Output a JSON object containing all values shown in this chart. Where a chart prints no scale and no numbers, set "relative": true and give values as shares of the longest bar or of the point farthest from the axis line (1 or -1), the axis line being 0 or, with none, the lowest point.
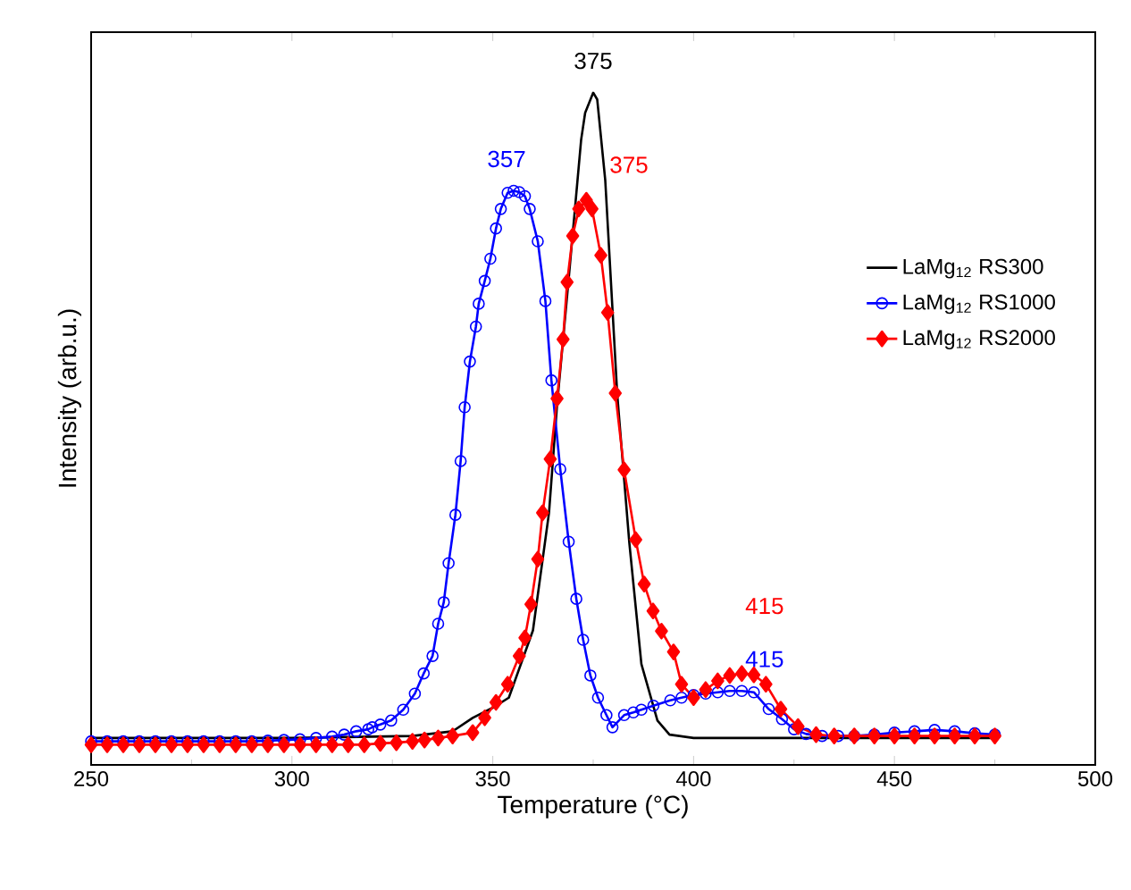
{
  "chart_data": {
    "type": "line",
    "xlabel": "Temperature (°C)",
    "ylabel": "Intensity (arb.u.)",
    "relative": true,
    "xlim": [
      250,
      500
    ],
    "xticks": [
      250,
      300,
      350,
      400,
      450,
      500
    ],
    "legend": "right",
    "line_style": "solid",
    "grid": false,
    "series": [
      {
        "name": "LaMg$_{12}$ RS300",
        "color": "#000000",
        "marker": "none",
        "x": [
          250,
          300,
          330,
          340,
          345,
          350,
          354,
          360,
          364,
          366,
          369,
          372,
          373,
          375,
          376,
          378,
          381,
          384,
          387,
          391,
          394,
          400,
          430,
          475
        ],
        "values": [
          0.04,
          0.04,
          0.043,
          0.05,
          0.07,
          0.085,
          0.1,
          0.2,
          0.375,
          0.535,
          0.73,
          0.93,
          0.97,
          1.0,
          0.99,
          0.87,
          0.55,
          0.33,
          0.15,
          0.066,
          0.045,
          0.04,
          0.04,
          0.04
        ]
      },
      {
        "name": "LaMg$_{12}$ RS1000",
        "color": "#0000ff",
        "marker": "circle",
        "x": [
          250,
          254,
          258,
          262,
          266,
          270,
          274,
          278,
          282,
          286,
          290,
          294,
          298,
          302,
          306,
          310,
          313,
          316,
          319,
          320,
          322,
          324.7,
          327.7,
          330.6,
          332.8,
          335,
          336.4,
          337.8,
          339,
          340.7,
          342,
          343,
          344.3,
          345.8,
          346.5,
          348,
          349.4,
          350.8,
          352,
          353.7,
          355.2,
          356.6,
          358,
          359.2,
          361.2,
          363.1,
          364.6,
          366.8,
          368.9,
          370.8,
          372.5,
          374.3,
          376.2,
          378.3,
          379.8,
          382.7,
          385,
          387,
          390,
          394.2,
          397,
          400,
          403,
          406,
          409,
          412,
          415,
          418.7,
          422,
          425,
          428,
          432,
          436,
          440,
          445,
          450,
          455,
          460,
          465,
          470,
          475
        ],
        "values": [
          0.035,
          0.035,
          0.035,
          0.035,
          0.035,
          0.035,
          0.035,
          0.035,
          0.035,
          0.035,
          0.035,
          0.036,
          0.037,
          0.038,
          0.04,
          0.042,
          0.045,
          0.05,
          0.053,
          0.056,
          0.06,
          0.066,
          0.082,
          0.106,
          0.136,
          0.162,
          0.21,
          0.242,
          0.3,
          0.372,
          0.452,
          0.532,
          0.6,
          0.652,
          0.686,
          0.72,
          0.753,
          0.798,
          0.827,
          0.851,
          0.854,
          0.852,
          0.846,
          0.827,
          0.779,
          0.69,
          0.572,
          0.44,
          0.332,
          0.247,
          0.186,
          0.133,
          0.1,
          0.074,
          0.056,
          0.074,
          0.078,
          0.082,
          0.088,
          0.096,
          0.1,
          0.104,
          0.106,
          0.108,
          0.11,
          0.11,
          0.108,
          0.083,
          0.068,
          0.053,
          0.046,
          0.043,
          0.043,
          0.043,
          0.045,
          0.048,
          0.05,
          0.052,
          0.05,
          0.047,
          0.045
        ]
      },
      {
        "name": "LaMg$_{12}$ RS2000",
        "color": "#ff0000",
        "marker": "diamond",
        "x": [
          250,
          254,
          258,
          262,
          266,
          270,
          274,
          278,
          282,
          286,
          290,
          294,
          298,
          302,
          306,
          310,
          314,
          318,
          322,
          326,
          330,
          333,
          336.4,
          340,
          345,
          348,
          350.8,
          353.7,
          356.6,
          358,
          359.5,
          361.2,
          362.4,
          364.3,
          366,
          367.5,
          368.5,
          369.9,
          371.4,
          373.3,
          374.7,
          376.9,
          378.6,
          380.5,
          382.7,
          385.6,
          387.7,
          389.9,
          392,
          395,
          397,
          400,
          403,
          406,
          409,
          412,
          415,
          418,
          421.7,
          426,
          430.5,
          435,
          440,
          445,
          450,
          455,
          460,
          465,
          470,
          475
        ],
        "values": [
          0.03,
          0.03,
          0.03,
          0.03,
          0.03,
          0.03,
          0.03,
          0.03,
          0.03,
          0.03,
          0.03,
          0.03,
          0.03,
          0.03,
          0.03,
          0.03,
          0.03,
          0.03,
          0.032,
          0.033,
          0.035,
          0.037,
          0.04,
          0.043,
          0.048,
          0.07,
          0.093,
          0.12,
          0.162,
          0.189,
          0.239,
          0.306,
          0.375,
          0.455,
          0.545,
          0.633,
          0.718,
          0.787,
          0.827,
          0.84,
          0.827,
          0.758,
          0.673,
          0.553,
          0.439,
          0.335,
          0.269,
          0.229,
          0.199,
          0.168,
          0.12,
          0.1,
          0.112,
          0.125,
          0.133,
          0.136,
          0.134,
          0.12,
          0.083,
          0.057,
          0.045,
          0.043,
          0.043,
          0.043,
          0.043,
          0.043,
          0.043,
          0.043,
          0.043,
          0.043
        ]
      }
    ],
    "annotations": [
      {
        "text": "375",
        "x": 375,
        "y": 1.0
      },
      {
        "text": "357",
        "x": 357,
        "y": 0.854
      },
      {
        "text": "375",
        "x": 375,
        "y": 0.84
      },
      {
        "text": "415",
        "x": 415,
        "y": 0.136
      },
      {
        "text": "415",
        "x": 415,
        "y": 0.11
      }
    ]
  }
}
